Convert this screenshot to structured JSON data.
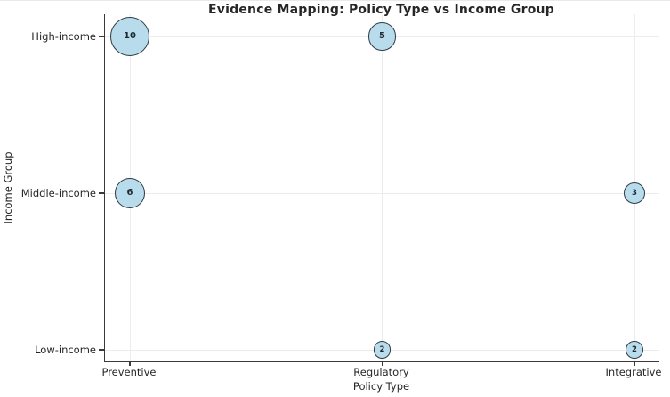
{
  "chart_data": {
    "type": "scatter",
    "subtype": "bubble",
    "title": "Evidence Mapping: Policy Type vs Income Group",
    "xlabel": "Policy Type",
    "ylabel": "Income Group",
    "x_categories": [
      "Preventive",
      "Regulatory",
      "Integrative"
    ],
    "y_categories_top_to_bottom": [
      "High-income",
      "Middle-income",
      "Low-income"
    ],
    "points": [
      {
        "x": "Preventive",
        "y": "High-income",
        "value": 10
      },
      {
        "x": "Regulatory",
        "y": "High-income",
        "value": 5
      },
      {
        "x": "Preventive",
        "y": "Middle-income",
        "value": 6
      },
      {
        "x": "Integrative",
        "y": "Middle-income",
        "value": 3
      },
      {
        "x": "Regulatory",
        "y": "Low-income",
        "value": 2
      },
      {
        "x": "Integrative",
        "y": "Low-income",
        "value": 2
      }
    ],
    "grid": true,
    "legend": false,
    "colors": {
      "bubble_fill": "#b9dcec",
      "bubble_edge": "#2d3a45",
      "gridline": "#ececec",
      "spine": "#3a3a3a",
      "text": "#262626"
    }
  }
}
